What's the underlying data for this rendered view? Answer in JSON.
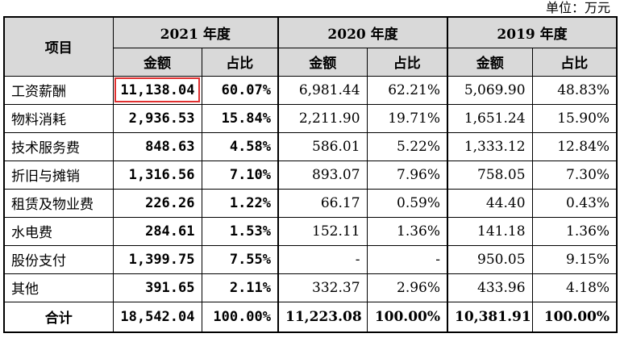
{
  "unit_label": "单位：万元",
  "header": {
    "item_label": "项目",
    "years": [
      "2021 年度",
      "2020 年度",
      "2019 年度"
    ],
    "amount_label": "金额",
    "ratio_label": "占比"
  },
  "rows": [
    {
      "name": "工资薪酬",
      "y2021": [
        "11,138.04",
        "60.07%"
      ],
      "y2020": [
        "6,981.44",
        "62.21%"
      ],
      "y2019": [
        "5,069.90",
        "48.83%"
      ]
    },
    {
      "name": "物料消耗",
      "y2021": [
        "2,936.53",
        "15.84%"
      ],
      "y2020": [
        "2,211.90",
        "19.71%"
      ],
      "y2019": [
        "1,651.24",
        "15.90%"
      ]
    },
    {
      "name": "技术服务费",
      "y2021": [
        "848.63",
        "4.58%"
      ],
      "y2020": [
        "586.01",
        "5.22%"
      ],
      "y2019": [
        "1,333.12",
        "12.84%"
      ]
    },
    {
      "name": "折旧与摊销",
      "y2021": [
        "1,316.56",
        "7.10%"
      ],
      "y2020": [
        "893.07",
        "7.96%"
      ],
      "y2019": [
        "758.05",
        "7.30%"
      ]
    },
    {
      "name": "租赁及物业费",
      "y2021": [
        "226.26",
        "1.22%"
      ],
      "y2020": [
        "66.17",
        "0.59%"
      ],
      "y2019": [
        "44.40",
        "0.43%"
      ]
    },
    {
      "name": "水电费",
      "y2021": [
        "284.61",
        "1.53%"
      ],
      "y2020": [
        "152.11",
        "1.36%"
      ],
      "y2019": [
        "141.18",
        "1.36%"
      ]
    },
    {
      "name": "股份支付",
      "y2021": [
        "1,399.75",
        "7.55%"
      ],
      "y2020": [
        "-",
        "-"
      ],
      "y2019": [
        "950.05",
        "9.15%"
      ]
    },
    {
      "name": "其他",
      "y2021": [
        "391.65",
        "2.11%"
      ],
      "y2020": [
        "332.37",
        "2.96%"
      ],
      "y2019": [
        "433.96",
        "4.18%"
      ]
    }
  ],
  "total": {
    "name": "合计",
    "y2021": [
      "18,542.04",
      "100.00%"
    ],
    "y2020": [
      "11,223.08",
      "100.00%"
    ],
    "y2019": [
      "10,381.91",
      "100.00%"
    ]
  },
  "highlight_color": "#e03030"
}
